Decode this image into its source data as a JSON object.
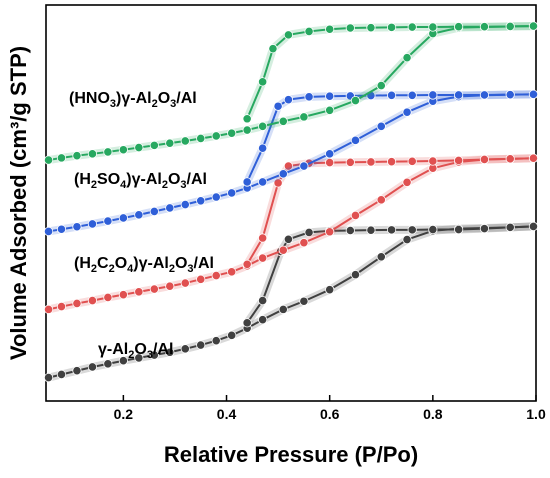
{
  "chart_data": {
    "type": "line",
    "title": "",
    "xlabel": "Relative Pressure (P/Po)",
    "ylabel": "Volume Adsorbed (cm³/g STP)",
    "xlim": [
      0.05,
      1.0
    ],
    "ylim": [
      0,
      1
    ],
    "y_ticks_labeled": false,
    "xticks": [
      "0.2",
      "0.4",
      "0.6",
      "0.8",
      "1.0"
    ],
    "xtick_values": [
      0.2,
      0.4,
      0.6,
      0.8,
      1.0
    ],
    "grid": false,
    "legend": "none (series labeled inline)",
    "series": [
      {
        "name": "γ-Al₂O₃/Al",
        "label_parts": [
          [
            "γ-Al",
            false
          ],
          [
            "2",
            true
          ],
          [
            "O",
            false
          ],
          [
            "3",
            true
          ],
          [
            "/Al",
            false
          ]
        ],
        "color": "#404040",
        "adsorption": {
          "x": [
            0.055,
            0.08,
            0.11,
            0.14,
            0.17,
            0.2,
            0.23,
            0.26,
            0.29,
            0.32,
            0.35,
            0.38,
            0.41,
            0.44,
            0.47,
            0.51,
            0.55,
            0.6,
            0.65,
            0.7,
            0.75,
            0.8,
            0.85,
            0.9,
            0.95,
            0.995
          ],
          "y": [
            0.03,
            0.04,
            0.052,
            0.064,
            0.074,
            0.084,
            0.093,
            0.102,
            0.111,
            0.122,
            0.134,
            0.148,
            0.165,
            0.188,
            0.215,
            0.248,
            0.274,
            0.311,
            0.359,
            0.416,
            0.471,
            0.499,
            0.506,
            0.508,
            0.51,
            0.513
          ]
        },
        "desorption": {
          "x": [
            0.995,
            0.95,
            0.9,
            0.85,
            0.8,
            0.76,
            0.72,
            0.68,
            0.64,
            0.6,
            0.56,
            0.52,
            0.505,
            0.47,
            0.44
          ],
          "y": [
            0.513,
            0.51,
            0.506,
            0.503,
            0.503,
            0.502,
            0.502,
            0.501,
            0.5,
            0.499,
            0.494,
            0.472,
            0.433,
            0.276,
            0.205
          ]
        }
      },
      {
        "name": "(H₂C₂O₄)γ-Al₂O₃/Al",
        "label_parts": [
          [
            "(H",
            false
          ],
          [
            "2",
            true
          ],
          [
            "C",
            false
          ],
          [
            "2",
            true
          ],
          [
            "O",
            false
          ],
          [
            "4",
            true
          ],
          [
            ")γ-Al",
            false
          ],
          [
            "2",
            true
          ],
          [
            "O",
            false
          ],
          [
            "3",
            true
          ],
          [
            "/Al",
            false
          ]
        ],
        "color": "#e05050",
        "adsorption": {
          "x": [
            0.055,
            0.08,
            0.11,
            0.14,
            0.17,
            0.2,
            0.23,
            0.26,
            0.29,
            0.32,
            0.35,
            0.38,
            0.41,
            0.44,
            0.47,
            0.51,
            0.55,
            0.6,
            0.65,
            0.7,
            0.75,
            0.8,
            0.85,
            0.9,
            0.95,
            0.995
          ],
          "y": [
            0.248,
            0.257,
            0.267,
            0.276,
            0.286,
            0.295,
            0.304,
            0.313,
            0.322,
            0.332,
            0.344,
            0.356,
            0.368,
            0.387,
            0.412,
            0.437,
            0.461,
            0.496,
            0.548,
            0.598,
            0.654,
            0.699,
            0.719,
            0.727,
            0.729,
            0.731
          ]
        },
        "desorption": {
          "x": [
            0.995,
            0.95,
            0.9,
            0.85,
            0.8,
            0.76,
            0.72,
            0.68,
            0.64,
            0.6,
            0.56,
            0.52,
            0.5,
            0.47,
            0.44
          ],
          "y": [
            0.731,
            0.729,
            0.727,
            0.724,
            0.722,
            0.721,
            0.72,
            0.719,
            0.718,
            0.717,
            0.715,
            0.706,
            0.652,
            0.476,
            0.392
          ]
        }
      },
      {
        "name": "(H₂SO₄)γ-Al₂O₃/Al",
        "label_parts": [
          [
            "(H",
            false
          ],
          [
            "2",
            true
          ],
          [
            "SO",
            false
          ],
          [
            "4",
            true
          ],
          [
            ")γ-Al",
            false
          ],
          [
            "2",
            true
          ],
          [
            "O",
            false
          ],
          [
            "3",
            true
          ],
          [
            "/Al",
            false
          ]
        ],
        "color": "#2f5fd8",
        "adsorption": {
          "x": [
            0.055,
            0.08,
            0.11,
            0.14,
            0.17,
            0.2,
            0.23,
            0.26,
            0.29,
            0.32,
            0.35,
            0.38,
            0.41,
            0.44,
            0.47,
            0.51,
            0.55,
            0.6,
            0.65,
            0.7,
            0.75,
            0.8,
            0.85,
            0.9,
            0.95,
            0.995
          ],
          "y": [
            0.497,
            0.504,
            0.512,
            0.521,
            0.53,
            0.54,
            0.55,
            0.561,
            0.572,
            0.583,
            0.595,
            0.607,
            0.62,
            0.636,
            0.655,
            0.681,
            0.706,
            0.745,
            0.788,
            0.833,
            0.878,
            0.913,
            0.928,
            0.932,
            0.934,
            0.935
          ]
        },
        "desorption": {
          "x": [
            0.995,
            0.95,
            0.9,
            0.85,
            0.8,
            0.76,
            0.72,
            0.68,
            0.64,
            0.6,
            0.56,
            0.52,
            0.5,
            0.47,
            0.44
          ],
          "y": [
            0.935,
            0.934,
            0.933,
            0.933,
            0.933,
            0.932,
            0.932,
            0.931,
            0.93,
            0.929,
            0.927,
            0.918,
            0.897,
            0.763,
            0.655
          ]
        }
      },
      {
        "name": "(HNO₃)γ-Al₂O₃/Al",
        "label_parts": [
          [
            "(HNO",
            false
          ],
          [
            "3",
            true
          ],
          [
            ")γ-Al",
            false
          ],
          [
            "2",
            true
          ],
          [
            "O",
            false
          ],
          [
            "3",
            true
          ],
          [
            "/Al",
            false
          ]
        ],
        "color": "#27a860",
        "adsorption": {
          "x": [
            0.055,
            0.08,
            0.11,
            0.14,
            0.17,
            0.2,
            0.23,
            0.26,
            0.29,
            0.32,
            0.35,
            0.38,
            0.41,
            0.44,
            0.47,
            0.51,
            0.55,
            0.6,
            0.65,
            0.7,
            0.75,
            0.8,
            0.85,
            0.9,
            0.95,
            0.995
          ],
          "y": [
            0.725,
            0.732,
            0.739,
            0.745,
            0.751,
            0.758,
            0.765,
            0.772,
            0.779,
            0.786,
            0.794,
            0.802,
            0.811,
            0.821,
            0.833,
            0.849,
            0.863,
            0.884,
            0.915,
            0.963,
            1.052,
            1.129,
            1.148,
            1.15,
            1.152,
            1.153
          ]
        },
        "desorption": {
          "x": [
            0.995,
            0.95,
            0.9,
            0.85,
            0.8,
            0.76,
            0.72,
            0.68,
            0.64,
            0.6,
            0.56,
            0.52,
            0.49,
            0.47,
            0.44
          ],
          "y": [
            1.153,
            1.152,
            1.151,
            1.151,
            1.15,
            1.15,
            1.149,
            1.148,
            1.147,
            1.143,
            1.136,
            1.125,
            1.081,
            0.975,
            0.857
          ]
        }
      }
    ]
  }
}
